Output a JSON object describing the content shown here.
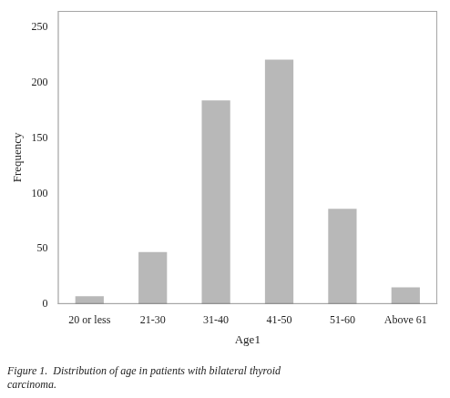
{
  "chart_data": {
    "type": "bar",
    "categories": [
      "20 or less",
      "21-30",
      "31-40",
      "41-50",
      "51-60",
      "Above 61"
    ],
    "values": [
      7,
      47,
      184,
      221,
      86,
      15
    ],
    "color": "#b8b8b8",
    "xlabel": "Age1",
    "ylabel": "Frequency",
    "ylim": [
      0,
      265
    ],
    "yticks": [
      0,
      50,
      100,
      150,
      200,
      250
    ],
    "annotations": [
      "Figure 1.  Distribution of age in patients with bilateral thyroid",
      "carcinoma."
    ],
    "grid": false,
    "legend": false
  }
}
